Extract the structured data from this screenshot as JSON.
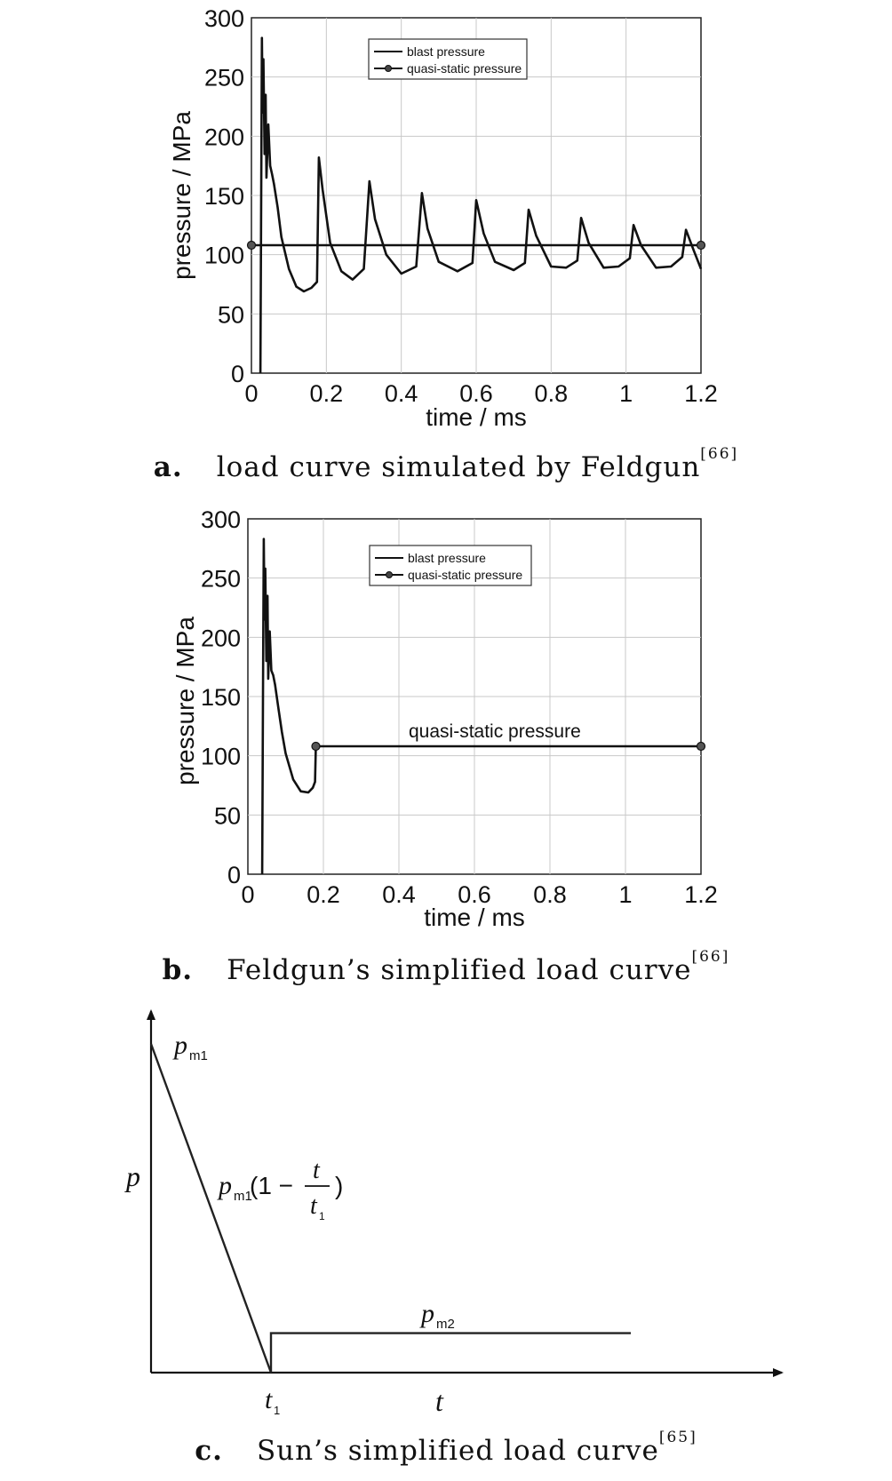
{
  "chart_data": [
    {
      "type": "line",
      "caption_label": "a.",
      "caption_text": "load curve simulated by Feldgun",
      "caption_ref": "[66]",
      "xlabel": "time / ms",
      "ylabel": "pressure / MPa",
      "xlim": [
        0,
        1.2
      ],
      "ylim": [
        0,
        300
      ],
      "xticks": [
        "0",
        "0.2",
        "0.4",
        "0.6",
        "0.8",
        "1",
        "1.2"
      ],
      "yticks": [
        "0",
        "50",
        "100",
        "150",
        "200",
        "250",
        "300"
      ],
      "grid": true,
      "legend_position": "top-right",
      "series": [
        {
          "name": "blast pressure",
          "x": [
            0.024,
            0.026,
            0.028,
            0.03,
            0.032,
            0.035,
            0.038,
            0.04,
            0.045,
            0.05,
            0.055,
            0.06,
            0.07,
            0.08,
            0.1,
            0.12,
            0.14,
            0.16,
            0.175,
            0.18,
            0.19,
            0.21,
            0.24,
            0.27,
            0.3,
            0.315,
            0.33,
            0.36,
            0.4,
            0.44,
            0.455,
            0.47,
            0.5,
            0.55,
            0.59,
            0.6,
            0.62,
            0.65,
            0.7,
            0.73,
            0.74,
            0.76,
            0.8,
            0.84,
            0.87,
            0.88,
            0.9,
            0.94,
            0.98,
            1.01,
            1.02,
            1.04,
            1.08,
            1.12,
            1.15,
            1.16,
            1.18,
            1.2
          ],
          "y": [
            0,
            150,
            283,
            220,
            265,
            185,
            235,
            165,
            210,
            175,
            168,
            160,
            140,
            115,
            88,
            73,
            69,
            72,
            77,
            182,
            155,
            110,
            86,
            79,
            88,
            162,
            130,
            100,
            84,
            90,
            152,
            122,
            94,
            86,
            93,
            146,
            118,
            94,
            87,
            93,
            138,
            116,
            90,
            89,
            95,
            131,
            110,
            89,
            90,
            97,
            125,
            108,
            89,
            90,
            98,
            121,
            104,
            88
          ]
        },
        {
          "name": "quasi-static pressure",
          "x": [
            0,
            1.2
          ],
          "y": [
            108,
            108
          ],
          "markers": true
        }
      ]
    },
    {
      "type": "line",
      "caption_label": "b.",
      "caption_text": "Feldgun’s simplified load curve",
      "caption_ref": "[66]",
      "xlabel": "time / ms",
      "ylabel": "pressure / MPa",
      "xlim": [
        0,
        1.2
      ],
      "ylim": [
        0,
        300
      ],
      "xticks": [
        "0",
        "0.2",
        "0.4",
        "0.6",
        "0.8",
        "1",
        "1.2"
      ],
      "yticks": [
        "0",
        "50",
        "100",
        "150",
        "200",
        "250",
        "300"
      ],
      "grid": true,
      "legend_position": "top-right",
      "annotation": "quasi-static pressure",
      "series": [
        {
          "name": "blast pressure",
          "x": [
            0.038,
            0.04,
            0.042,
            0.044,
            0.046,
            0.049,
            0.052,
            0.054,
            0.058,
            0.062,
            0.067,
            0.072,
            0.08,
            0.09,
            0.1,
            0.12,
            0.14,
            0.16,
            0.172,
            0.178,
            0.18
          ],
          "y": [
            0,
            150,
            283,
            215,
            258,
            180,
            235,
            165,
            205,
            172,
            168,
            160,
            142,
            120,
            102,
            80,
            70,
            69,
            73,
            78,
            108
          ]
        },
        {
          "name": "quasi-static pressure",
          "x": [
            0.18,
            1.2
          ],
          "y": [
            108,
            108
          ],
          "markers": true
        }
      ]
    },
    {
      "type": "line",
      "caption_label": "c.",
      "caption_text": "Sun’s simplified load curve",
      "caption_ref": "[65]",
      "ylabel": "p",
      "xlabel": "t",
      "t1_label": "t",
      "t1_sub": "1",
      "pm1_label": "p",
      "pm1_sub": "m1",
      "pm2_label": "p",
      "pm2_sub": "m2",
      "formula": {
        "p": "p",
        "p_sub": "m1",
        "open": "(1 −",
        "num": "t",
        "den": "t",
        "den_sub": "1",
        "close": ")"
      },
      "points": [
        {
          "t": 0,
          "p": 1.0
        },
        {
          "t": 1.0,
          "p": 0
        },
        {
          "t": 1.0,
          "p": 0.12
        },
        {
          "t": 4.0,
          "p": 0.12
        }
      ]
    }
  ]
}
